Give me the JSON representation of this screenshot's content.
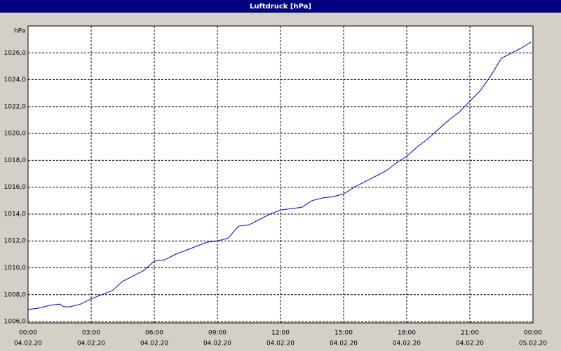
{
  "chart_data": {
    "type": "line",
    "title": "Luftdruck [hPa]",
    "y_unit": "hPa",
    "x": [
      0,
      0.5,
      1,
      1.5,
      1.7,
      2,
      2.5,
      3,
      3.5,
      4,
      4.5,
      5,
      5.5,
      6,
      6.5,
      7,
      7.5,
      8,
      8.5,
      9,
      9.5,
      10,
      10.5,
      11,
      11.5,
      12,
      12.5,
      13,
      13.5,
      14,
      14.5,
      15,
      15.5,
      16,
      16.5,
      17,
      17.5,
      18,
      18.5,
      19,
      19.5,
      20,
      20.5,
      21,
      21.5,
      22,
      22.5,
      23,
      23.5,
      23.9
    ],
    "series": [
      {
        "color": "#0000cc",
        "values": [
          1006.9,
          1007.0,
          1007.2,
          1007.3,
          1007.1,
          1007.1,
          1007.3,
          1007.7,
          1008.0,
          1008.3,
          1009.0,
          1009.4,
          1009.8,
          1010.5,
          1010.6,
          1011.0,
          1011.3,
          1011.6,
          1011.9,
          1012.0,
          1012.2,
          1013.1,
          1013.2,
          1013.6,
          1014.0,
          1014.3,
          1014.4,
          1014.5,
          1015.0,
          1015.2,
          1015.3,
          1015.5,
          1016.0,
          1016.4,
          1016.8,
          1017.2,
          1017.8,
          1018.3,
          1019.0,
          1019.6,
          1020.3,
          1021.0,
          1021.6,
          1022.4,
          1023.2,
          1024.3,
          1025.6,
          1026.0,
          1026.4,
          1026.8
        ]
      }
    ],
    "xlim": [
      0,
      24
    ],
    "xticks": [
      {
        "value": 0,
        "label": "00:00"
      },
      {
        "value": 3,
        "label": "03:00"
      },
      {
        "value": 6,
        "label": "06:00"
      },
      {
        "value": 9,
        "label": "09:00"
      },
      {
        "value": 12,
        "label": "12:00"
      },
      {
        "value": 15,
        "label": "15:00"
      },
      {
        "value": 18,
        "label": "18:00"
      },
      {
        "value": 21,
        "label": "21:00"
      },
      {
        "value": 24,
        "label": "00:00"
      }
    ],
    "xtick_dates": [
      "04.02.20",
      "04.02.20",
      "04.02.20",
      "04.02.20",
      "04.02.20",
      "04.02.20",
      "04.02.20",
      "04.02.20",
      "05.02.20"
    ],
    "ylim": [
      1005.9,
      1028
    ],
    "yticks": [
      {
        "value": 1006,
        "label": "1006,0"
      },
      {
        "value": 1008,
        "label": "1008,0"
      },
      {
        "value": 1010,
        "label": "1010,0"
      },
      {
        "value": 1012,
        "label": "1012,0"
      },
      {
        "value": 1014,
        "label": "1014,0"
      },
      {
        "value": 1016,
        "label": "1016,0"
      },
      {
        "value": 1018,
        "label": "1018,0"
      },
      {
        "value": 1020,
        "label": "1020,0"
      },
      {
        "value": 1022,
        "label": "1022,0"
      },
      {
        "value": 1024,
        "label": "1024,0"
      },
      {
        "value": 1026,
        "label": "1026,0"
      }
    ],
    "grid": true
  }
}
